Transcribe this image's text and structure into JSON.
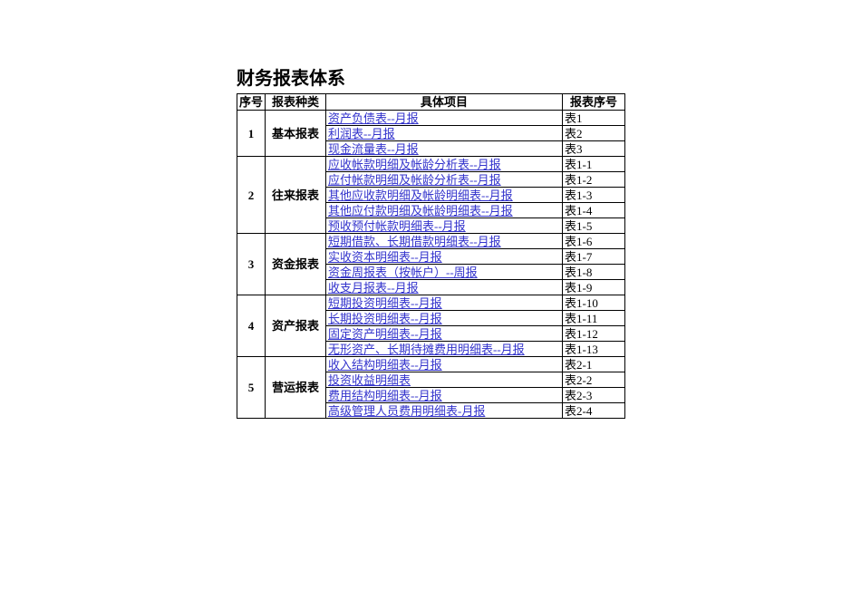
{
  "page": {
    "title": "财务报表体系"
  },
  "colors": {
    "link": "#3333CC",
    "border": "#000000",
    "text": "#000000",
    "background": "#FFFFFF"
  },
  "table": {
    "headers": [
      "序号",
      "报表种类",
      "具体项目",
      "报表序号"
    ],
    "groups": [
      {
        "no": "1",
        "category": "基本报表",
        "items": [
          {
            "name": "资产负债表--月报",
            "code": "表1"
          },
          {
            "name": "利润表--月报",
            "code": "表2"
          },
          {
            "name": "现金流量表--月报",
            "code": "表3"
          }
        ]
      },
      {
        "no": "2",
        "category": "往来报表",
        "items": [
          {
            "name": "应收帐款明细及帐龄分析表--月报",
            "code": "表1-1"
          },
          {
            "name": "应付帐款明细及帐龄分析表--月报",
            "code": "表1-2"
          },
          {
            "name": "其他应收款明细及帐龄明细表--月报",
            "code": "表1-3"
          },
          {
            "name": "其他应付款明细及帐龄明细表--月报",
            "code": "表1-4"
          },
          {
            "name": "预收预付帐款明细表--月报",
            "code": "表1-5"
          }
        ]
      },
      {
        "no": "3",
        "category": "资金报表",
        "items": [
          {
            "name": "短期借款、长期借款明细表--月报",
            "code": "表1-6"
          },
          {
            "name": "实收资本明细表--月报",
            "code": "表1-7"
          },
          {
            "name": "资金周报表（按帐户）--周报",
            "code": "表1-8"
          },
          {
            "name": "收支月报表--月报",
            "code": "表1-9"
          }
        ]
      },
      {
        "no": "4",
        "category": "资产报表",
        "items": [
          {
            "name": "短期投资明细表--月报",
            "code": "表1-10"
          },
          {
            "name": "长期投资明细表--月报",
            "code": "表1-11"
          },
          {
            "name": "固定资产明细表--月报",
            "code": "表1-12"
          },
          {
            "name": "无形资产、长期待摊费用明细表--月报",
            "code": "表1-13"
          }
        ]
      },
      {
        "no": "5",
        "category": "营运报表",
        "items": [
          {
            "name": "收入结构明细表--月报",
            "code": "表2-1"
          },
          {
            "name": "投资收益明细表",
            "code": "表2-2"
          },
          {
            "name": "费用结构明细表--月报",
            "code": "表2-3"
          },
          {
            "name": "高级管理人员费用明细表-月报",
            "code": "表2-4"
          }
        ]
      }
    ]
  }
}
